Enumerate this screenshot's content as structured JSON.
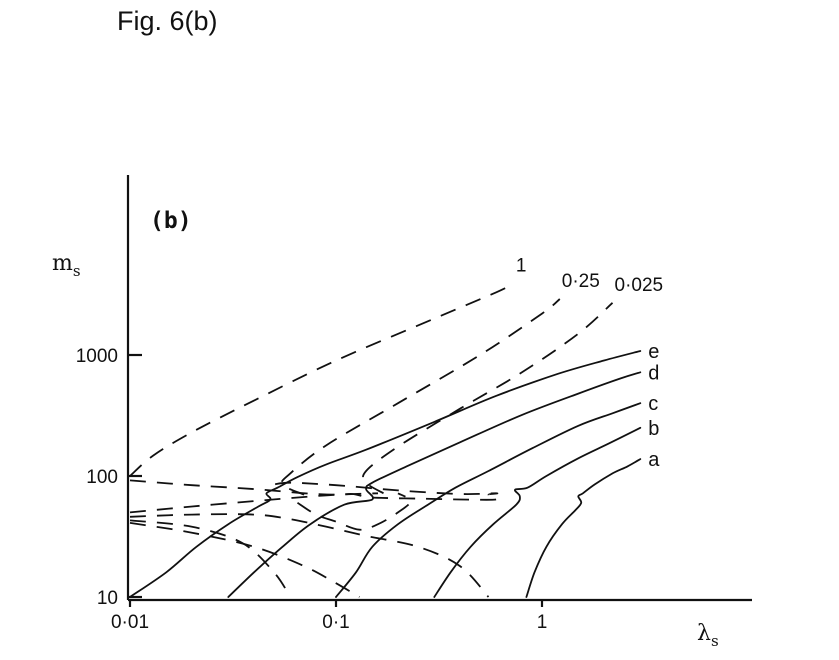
{
  "caption": "Fig. 6(b)",
  "chart_data": {
    "type": "line",
    "panel_label": "(b)",
    "title": "",
    "xlabel": "λ",
    "xlabel_sub": "s",
    "ylabel": "m",
    "ylabel_sub": "s",
    "xscale": "log",
    "yscale": "log",
    "xlim": [
      0.01,
      3.3
    ],
    "ylim": [
      10,
      5000
    ],
    "x_ticks": [
      {
        "value": 0.01,
        "label": "0·01"
      },
      {
        "value": 0.1,
        "label": "0·1"
      },
      {
        "value": 1,
        "label": "1"
      }
    ],
    "y_ticks": [
      {
        "value": 10,
        "label": "10"
      },
      {
        "value": 100,
        "label": "100"
      },
      {
        "value": 1000,
        "label": "1000"
      }
    ],
    "grid": false,
    "legend": "none",
    "series": [
      {
        "name": "a",
        "style": "solid",
        "points": [
          [
            0.84,
            10
          ],
          [
            0.92,
            16
          ],
          [
            1.05,
            26
          ],
          [
            1.25,
            40
          ],
          [
            1.45,
            52
          ],
          [
            1.55,
            60
          ],
          [
            1.5,
            68
          ],
          [
            1.58,
            72
          ],
          [
            1.8,
            85
          ],
          [
            2.2,
            105
          ],
          [
            2.6,
            120
          ],
          [
            3.0,
            138
          ]
        ]
      },
      {
        "name": "b",
        "style": "solid",
        "points": [
          [
            0.3,
            10
          ],
          [
            0.36,
            16
          ],
          [
            0.45,
            26
          ],
          [
            0.58,
            40
          ],
          [
            0.75,
            58
          ],
          [
            0.78,
            68
          ],
          [
            0.74,
            77
          ],
          [
            0.85,
            80
          ],
          [
            1.05,
            100
          ],
          [
            1.5,
            140
          ],
          [
            2.1,
            185
          ],
          [
            3.0,
            250
          ]
        ]
      },
      {
        "name": "c",
        "style": "solid",
        "points": [
          [
            0.1,
            10
          ],
          [
            0.125,
            16
          ],
          [
            0.15,
            26
          ],
          [
            0.2,
            40
          ],
          [
            0.28,
            58
          ],
          [
            0.38,
            80
          ],
          [
            0.55,
            110
          ],
          [
            0.9,
            170
          ],
          [
            1.5,
            260
          ],
          [
            2.2,
            330
          ],
          [
            3.0,
            400
          ]
        ]
      },
      {
        "name": "d",
        "style": "solid",
        "points": [
          [
            0.03,
            10
          ],
          [
            0.04,
            16
          ],
          [
            0.055,
            26
          ],
          [
            0.075,
            40
          ],
          [
            0.11,
            58
          ],
          [
            0.15,
            64
          ],
          [
            0.14,
            78
          ],
          [
            0.15,
            88
          ],
          [
            0.22,
            120
          ],
          [
            0.4,
            190
          ],
          [
            0.8,
            320
          ],
          [
            1.5,
            480
          ],
          [
            2.4,
            640
          ],
          [
            3.0,
            720
          ]
        ]
      },
      {
        "name": "e",
        "style": "solid",
        "points": [
          [
            0.01,
            10
          ],
          [
            0.015,
            16
          ],
          [
            0.021,
            26
          ],
          [
            0.03,
            40
          ],
          [
            0.042,
            56
          ],
          [
            0.048,
            64
          ],
          [
            0.046,
            72
          ],
          [
            0.052,
            80
          ],
          [
            0.065,
            98
          ],
          [
            0.09,
            125
          ],
          [
            0.14,
            165
          ],
          [
            0.3,
            280
          ],
          [
            0.6,
            460
          ],
          [
            1.2,
            700
          ],
          [
            2.0,
            900
          ],
          [
            3.0,
            1080
          ]
        ]
      },
      {
        "name": "1",
        "style": "dashed",
        "points": [
          [
            0.01,
            100
          ],
          [
            0.013,
            148
          ],
          [
            0.02,
            230
          ],
          [
            0.04,
            420
          ],
          [
            0.1,
            900
          ],
          [
            0.3,
            2000
          ],
          [
            0.6,
            3300
          ],
          [
            0.73,
            3900
          ]
        ]
      },
      {
        "name": "0·25",
        "style": "dashed",
        "points": [
          [
            0.07,
            70
          ],
          [
            0.055,
            85
          ],
          [
            0.06,
            105
          ],
          [
            0.09,
            180
          ],
          [
            0.2,
            400
          ],
          [
            0.5,
            1000
          ],
          [
            1.0,
            2200
          ],
          [
            1.22,
            2900
          ]
        ]
      },
      {
        "name": "0·025",
        "style": "dashed",
        "points": [
          [
            0.17,
            72
          ],
          [
            0.14,
            88
          ],
          [
            0.14,
            110
          ],
          [
            0.2,
            175
          ],
          [
            0.4,
            360
          ],
          [
            0.8,
            720
          ],
          [
            1.5,
            1500
          ],
          [
            2.2,
            2700
          ]
        ]
      },
      {
        "name": "",
        "style": "dashed",
        "points": [
          [
            0.01,
            92
          ],
          [
            0.02,
            84
          ],
          [
            0.04,
            78
          ],
          [
            0.07,
            72
          ],
          [
            0.1,
            70
          ],
          [
            0.12,
            71
          ],
          [
            0.14,
            67
          ],
          [
            0.16,
            66
          ],
          [
            0.25,
            65
          ],
          [
            0.4,
            64
          ],
          [
            0.6,
            64
          ],
          [
            0.55,
            70
          ],
          [
            0.6,
            72
          ],
          [
            0.4,
            71
          ],
          [
            0.2,
            76
          ],
          [
            0.1,
            84
          ],
          [
            0.06,
            88
          ],
          [
            0.05,
            85
          ]
        ]
      },
      {
        "name": "",
        "style": "dashed",
        "points": [
          [
            0.01,
            50
          ],
          [
            0.02,
            56
          ],
          [
            0.04,
            62
          ],
          [
            0.07,
            67
          ],
          [
            0.1,
            70
          ],
          [
            0.16,
            72
          ]
        ]
      },
      {
        "name": "",
        "style": "dashed",
        "points": [
          [
            0.01,
            46
          ],
          [
            0.02,
            48
          ],
          [
            0.04,
            48
          ],
          [
            0.06,
            44
          ],
          [
            0.09,
            38
          ],
          [
            0.14,
            32
          ],
          [
            0.25,
            26
          ],
          [
            0.4,
            18
          ],
          [
            0.55,
            10
          ]
        ]
      },
      {
        "name": "",
        "style": "dashed",
        "points": [
          [
            0.01,
            43
          ],
          [
            0.02,
            38
          ],
          [
            0.035,
            28
          ],
          [
            0.05,
            16
          ],
          [
            0.06,
            10
          ]
        ]
      },
      {
        "name": "",
        "style": "dashed",
        "points": [
          [
            0.01,
            41
          ],
          [
            0.02,
            34
          ],
          [
            0.04,
            26
          ],
          [
            0.07,
            18
          ],
          [
            0.1,
            13
          ],
          [
            0.13,
            10
          ]
        ]
      },
      {
        "name": "",
        "style": "dashed",
        "points": [
          [
            0.065,
            60
          ],
          [
            0.08,
            48
          ],
          [
            0.1,
            42
          ],
          [
            0.13,
            36
          ],
          [
            0.16,
            40
          ],
          [
            0.2,
            50
          ],
          [
            0.23,
            62
          ],
          [
            0.2,
            72
          ]
        ]
      }
    ]
  }
}
